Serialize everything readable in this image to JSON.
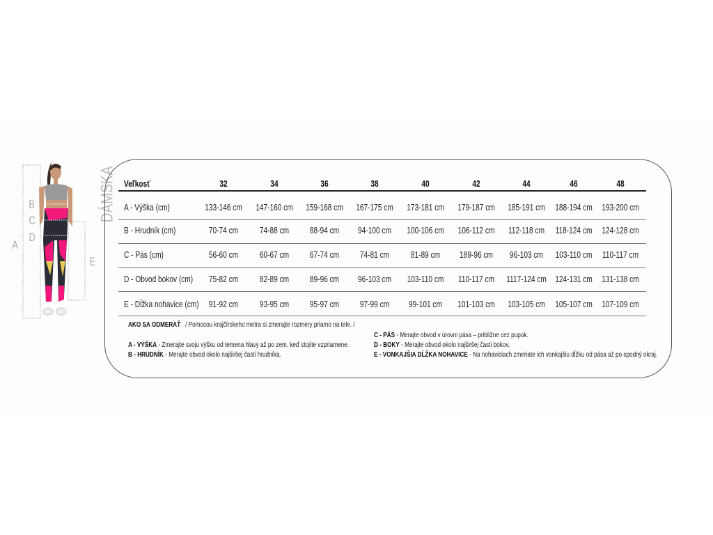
{
  "figure": {
    "title": "DÁMSKA",
    "labels": [
      "A",
      "B",
      "C",
      "D",
      "E"
    ],
    "colors": {
      "top": "#9a9a9a",
      "legging_pink": "#f0187a",
      "legging_dark": "#2b2b35",
      "legging_yellow": "#e8c85a",
      "legging_blue": "#2a2ad0"
    }
  },
  "table": {
    "header": [
      "Veľkosť",
      "32",
      "34",
      "36",
      "38",
      "40",
      "42",
      "44",
      "46",
      "48"
    ],
    "rows": [
      {
        "label": "A - Výška (cm)",
        "values": [
          "133-146 cm",
          "147-160 cm",
          "159-168 cm",
          "167-175 cm",
          "173-181 cm",
          "179-187 cm",
          "185-191 cm",
          "188-194 cm",
          "193-200 cm"
        ]
      },
      {
        "label": "B - Hrudník (cm)",
        "values": [
          "70-74 cm",
          "74-88 cm",
          "88-94 cm",
          "94-100 cm",
          "100-106 cm",
          "106-112  cm",
          "112-118 cm",
          "118-124 cm",
          "124-128 cm"
        ]
      },
      {
        "label": "C - Pás (cm)",
        "values": [
          "56-60 cm",
          "60-67 cm",
          "67-74 cm",
          "74-81 cm",
          "81-89 cm",
          "189-96 cm",
          "96-103 cm",
          "103-110 cm",
          "110-117 cm"
        ]
      },
      {
        "label": "D - Obvod bokov (cm)",
        "values": [
          "75-82 cm",
          "82-89 cm",
          "89-96 cm",
          "96-103 cm",
          "103-110 cm",
          "110-117 cm",
          "1117-124 cm",
          "124-131 cm",
          "131-138 cm"
        ]
      },
      {
        "label": "E - Dĺžka nohavice (cm)",
        "values": [
          "91-92 cm",
          "93-95 cm",
          "95-97 cm",
          "97-99 cm",
          "99-101 cm",
          "101-103 cm",
          "103-105 cm",
          "105-107 cm",
          "107-109 cm"
        ]
      }
    ]
  },
  "notes": {
    "title": "AKO SA ODMERAŤ",
    "intro": "/ Pomocou krajčírskeho metra si zmerajte rozmery priamo na tele. /",
    "items": [
      {
        "key": "A -  VÝŠKA",
        "text": " - Zmerajte svoju výšku od temena hlavy až po zem, keď stojíte vzpriamene."
      },
      {
        "key": "B - HRUDNÍK",
        "text": " - Merajte obvod okolo najširšej časti hrudníka."
      },
      {
        "key": "C - PÁS",
        "text": " - Merajte obvod v úrovni pása – približne cez pupok."
      },
      {
        "key": "D - BOKY",
        "text": " - Merajte obvod okolo najširšej časti bokov."
      },
      {
        "key": "E - VONKAJŠIA DĹŽKA NOHAVICE",
        "text": " - Na nohaviciach zmeriate ich vonkajšiu dĺžku od pása až po spodný okraj."
      }
    ]
  }
}
